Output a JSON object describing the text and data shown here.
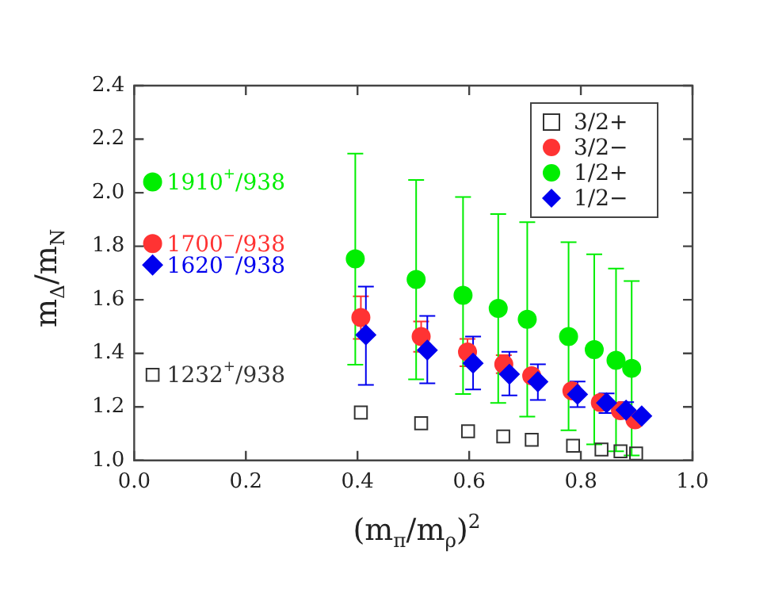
{
  "chart_data": {
    "type": "scatter",
    "xlabel": "(m$_{π}$/m$_{ρ}$)$^{2}$",
    "ylabel": "m$_{Δ}$/m$_{N}$",
    "xlim": [
      0,
      1
    ],
    "xticks": [
      {
        "value": 0,
        "label": "0.0"
      },
      0.2,
      0.4,
      0.6,
      0.8,
      {
        "value": 1,
        "label": "1.0"
      }
    ],
    "ylim": [
      1,
      2.4
    ],
    "yticks": [
      {
        "value": 1,
        "label": "1.0"
      },
      1.2,
      1.4,
      1.6,
      1.8,
      {
        "value": 2,
        "label": "2.0"
      },
      2.2,
      2.4
    ],
    "legend": "top right",
    "series": [
      {
        "name": "3/2+",
        "color": "#333333",
        "marker": "square",
        "x": [
          0.406,
          0.514,
          0.598,
          0.661,
          0.712,
          0.786,
          0.837,
          0.871,
          0.899
        ],
        "values": [
          1.179,
          1.139,
          1.109,
          1.09,
          1.077,
          1.055,
          1.041,
          1.034,
          1.026
        ]
      },
      {
        "name": "3/2−",
        "color": "#ff3333",
        "marker": "circle",
        "x": [
          0.406,
          0.514,
          0.597,
          0.662,
          0.712,
          0.784,
          0.835,
          0.871,
          0.897
        ],
        "values": [
          1.534,
          1.463,
          1.405,
          1.359,
          1.316,
          1.26,
          1.216,
          1.186,
          1.152
        ],
        "errors": [
          [
            1.454,
            1.613
          ],
          [
            1.406,
            1.519
          ],
          [
            1.352,
            1.454
          ],
          [
            1.326,
            1.393
          ],
          null,
          null,
          null,
          null,
          null
        ]
      },
      {
        "name": "1/2+",
        "color": "#00ee00",
        "marker": "circle",
        "x": [
          0.396,
          0.505,
          0.589,
          0.652,
          0.704,
          0.778,
          0.824,
          0.863,
          0.891
        ],
        "values": [
          1.753,
          1.676,
          1.617,
          1.568,
          1.527,
          1.463,
          1.414,
          1.374,
          1.344
        ],
        "errors": [
          [
            1.358,
            2.146
          ],
          [
            1.303,
            2.048
          ],
          [
            1.248,
            1.984
          ],
          [
            1.215,
            1.92
          ],
          [
            1.164,
            1.89
          ],
          [
            1.113,
            1.815
          ],
          [
            1.06,
            1.77
          ],
          [
            1.034,
            1.717
          ],
          [
            1.019,
            1.67
          ]
        ]
      },
      {
        "name": "1/2−",
        "color": "#0000ee",
        "marker": "diamond",
        "x": [
          0.415,
          0.525,
          0.607,
          0.672,
          0.723,
          0.794,
          0.846,
          0.881,
          0.909
        ],
        "values": [
          1.469,
          1.412,
          1.363,
          1.322,
          1.294,
          1.247,
          1.215,
          1.188,
          1.166
        ],
        "errors": [
          [
            1.282,
            1.649
          ],
          [
            1.288,
            1.54
          ],
          [
            1.265,
            1.463
          ],
          [
            1.243,
            1.406
          ],
          [
            1.226,
            1.359
          ],
          [
            1.199,
            1.295
          ],
          [
            1.177,
            1.25
          ],
          [
            1.16,
            1.218
          ],
          null
        ]
      },
      {
        "color": "#00ee00",
        "marker": "circle",
        "x": [
          0.033
        ],
        "values": [
          2.04
        ]
      },
      {
        "color": "#ff3333",
        "marker": "circle",
        "x": [
          0.033
        ],
        "values": [
          1.81
        ]
      },
      {
        "color": "#0000ee",
        "marker": "diamond",
        "x": [
          0.033
        ],
        "values": [
          1.73
        ]
      },
      {
        "color": "#333333",
        "marker": "square",
        "x": [
          0.033
        ],
        "values": [
          1.32
        ]
      }
    ],
    "annotations": [
      "1910$^{+}$/938",
      "1700$^{−}$/938",
      "1620$^{−}$/938",
      "1232$^{+}$/938"
    ],
    "grid": false
  }
}
